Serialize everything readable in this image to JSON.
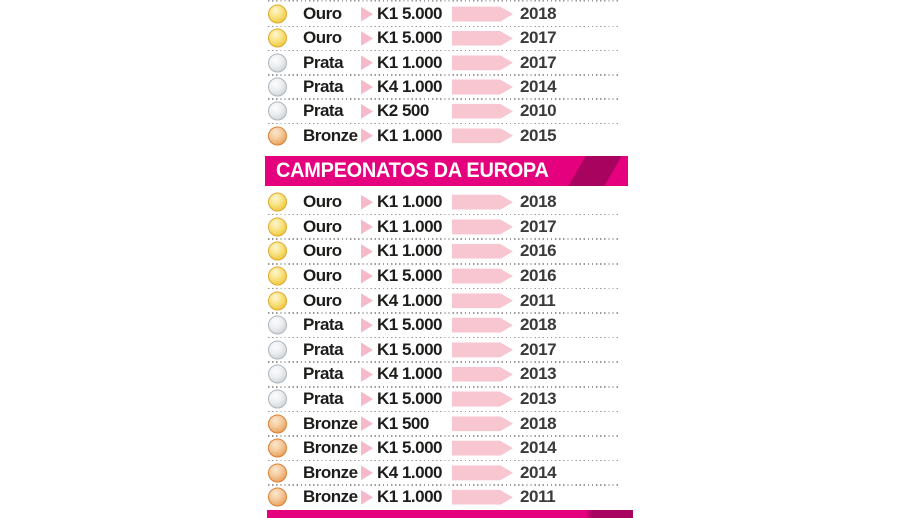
{
  "colors": {
    "banner_magenta": "#E5017E",
    "banner_fold_dark": "#A8035F",
    "bar_pink": "#F8C6D1",
    "chevron_pink": "#F5B9C9",
    "text_dark": "#1D1D1B",
    "year_gray": "#3A3A39",
    "dots_gray": "#9A9A9A",
    "gold_medal": "#F3D45C",
    "silver_medal": "#D8DCDF",
    "bronze_medal": "#EBA968"
  },
  "sections": [
    {
      "title": "",
      "rows": [
        {
          "medal": "Ouro",
          "type": "gold",
          "category": "K1 5.000",
          "year": "2018"
        },
        {
          "medal": "Ouro",
          "type": "gold",
          "category": "K1 5.000",
          "year": "2017"
        },
        {
          "medal": "Prata",
          "type": "silver",
          "category": "K1 1.000",
          "year": "2017"
        },
        {
          "medal": "Prata",
          "type": "silver",
          "category": "K4 1.000",
          "year": "2014"
        },
        {
          "medal": "Prata",
          "type": "silver",
          "category": "K2 500",
          "year": "2010"
        },
        {
          "medal": "Bronze",
          "type": "bronze",
          "category": "K1 1.000",
          "year": "2015"
        }
      ]
    },
    {
      "title": "CAMPEONATOS DA EUROPA",
      "rows": [
        {
          "medal": "Ouro",
          "type": "gold",
          "category": "K1 1.000",
          "year": "2018"
        },
        {
          "medal": "Ouro",
          "type": "gold",
          "category": "K1 1.000",
          "year": "2017"
        },
        {
          "medal": "Ouro",
          "type": "gold",
          "category": "K1 1.000",
          "year": "2016"
        },
        {
          "medal": "Ouro",
          "type": "gold",
          "category": "K1 5.000",
          "year": "2016"
        },
        {
          "medal": "Ouro",
          "type": "gold",
          "category": "K4 1.000",
          "year": "2011"
        },
        {
          "medal": "Prata",
          "type": "silver",
          "category": "K1 5.000",
          "year": "2018"
        },
        {
          "medal": "Prata",
          "type": "silver",
          "category": "K1 5.000",
          "year": "2017"
        },
        {
          "medal": "Prata",
          "type": "silver",
          "category": "K4 1.000",
          "year": "2013"
        },
        {
          "medal": "Prata",
          "type": "silver",
          "category": "K1 5.000",
          "year": "2013"
        },
        {
          "medal": "Bronze",
          "type": "bronze",
          "category": "K1 500",
          "year": "2018"
        },
        {
          "medal": "Bronze",
          "type": "bronze",
          "category": "K1 5.000",
          "year": "2014"
        },
        {
          "medal": "Bronze",
          "type": "bronze",
          "category": "K4 1.000",
          "year": "2014"
        },
        {
          "medal": "Bronze",
          "type": "bronze",
          "category": "K1 1.000",
          "year": "2011"
        }
      ]
    }
  ],
  "chart_data": {
    "type": "table",
    "tables": [
      {
        "title": "",
        "columns": [
          "medal",
          "event",
          "year"
        ],
        "rows": [
          [
            "Ouro",
            "K1 5.000",
            2018
          ],
          [
            "Ouro",
            "K1 5.000",
            2017
          ],
          [
            "Prata",
            "K1 1.000",
            2017
          ],
          [
            "Prata",
            "K4 1.000",
            2014
          ],
          [
            "Prata",
            "K2 500",
            2010
          ],
          [
            "Bronze",
            "K1 1.000",
            2015
          ]
        ]
      },
      {
        "title": "CAMPEONATOS DA EUROPA",
        "columns": [
          "medal",
          "event",
          "year"
        ],
        "rows": [
          [
            "Ouro",
            "K1 1.000",
            2018
          ],
          [
            "Ouro",
            "K1 1.000",
            2017
          ],
          [
            "Ouro",
            "K1 1.000",
            2016
          ],
          [
            "Ouro",
            "K1 5.000",
            2016
          ],
          [
            "Ouro",
            "K4 1.000",
            2011
          ],
          [
            "Prata",
            "K1 5.000",
            2018
          ],
          [
            "Prata",
            "K1 5.000",
            2017
          ],
          [
            "Prata",
            "K4 1.000",
            2013
          ],
          [
            "Prata",
            "K1 5.000",
            2013
          ],
          [
            "Bronze",
            "K1 500",
            2018
          ],
          [
            "Bronze",
            "K1 5.000",
            2014
          ],
          [
            "Bronze",
            "K4 1.000",
            2014
          ],
          [
            "Bronze",
            "K1 1.000",
            2011
          ]
        ]
      }
    ]
  }
}
